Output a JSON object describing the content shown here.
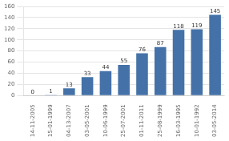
{
  "chart_data": {
    "type": "bar",
    "categories": [
      "14-11-2005",
      "15-01-1999",
      "04-13-2007",
      "03-05-2001",
      "10-06-1999",
      "25-07-2001",
      "01-11-2011",
      "25-08-1999",
      "16-03-1995",
      "10-01-1992",
      "03-05-2014"
    ],
    "values": [
      0,
      1,
      13,
      33,
      44,
      55,
      76,
      87,
      118,
      119,
      145
    ],
    "color": "#4472a8",
    "ylim": [
      0,
      160
    ],
    "yticks": [
      0,
      20,
      40,
      60,
      80,
      100,
      120,
      140,
      160
    ],
    "grid": true,
    "data_labels": true
  }
}
